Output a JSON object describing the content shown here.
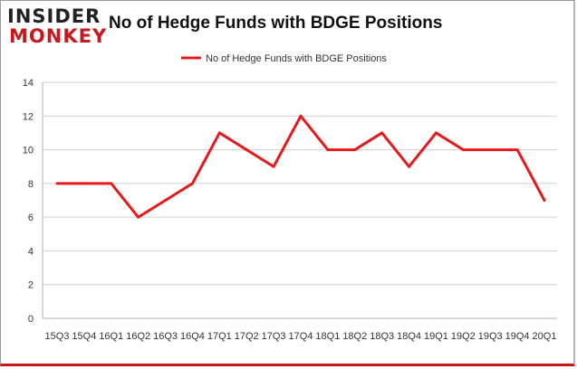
{
  "logo": {
    "top": "INSIDER",
    "bottom": "MONKEY"
  },
  "chart_data": {
    "type": "line",
    "title": "No of Hedge Funds with BDGE Positions",
    "xlabel": "",
    "ylabel": "",
    "categories": [
      "15Q3",
      "15Q4",
      "16Q1",
      "16Q2",
      "16Q3",
      "16Q4",
      "17Q1",
      "17Q2",
      "17Q3",
      "17Q4",
      "18Q1",
      "18Q2",
      "18Q3",
      "18Q4",
      "19Q1",
      "19Q2",
      "19Q3",
      "19Q4",
      "20Q1"
    ],
    "series": [
      {
        "name": "No of Hedge Funds with BDGE Positions",
        "values": [
          8,
          8,
          8,
          6,
          7,
          8,
          11,
          10,
          9,
          12,
          10,
          10,
          11,
          9,
          11,
          10,
          10,
          10,
          7
        ],
        "color": "#e8191b"
      }
    ],
    "ylim": [
      0,
      14
    ],
    "yticks": [
      0,
      2,
      4,
      6,
      8,
      10,
      12,
      14
    ],
    "grid": true,
    "legend": "top-center"
  }
}
